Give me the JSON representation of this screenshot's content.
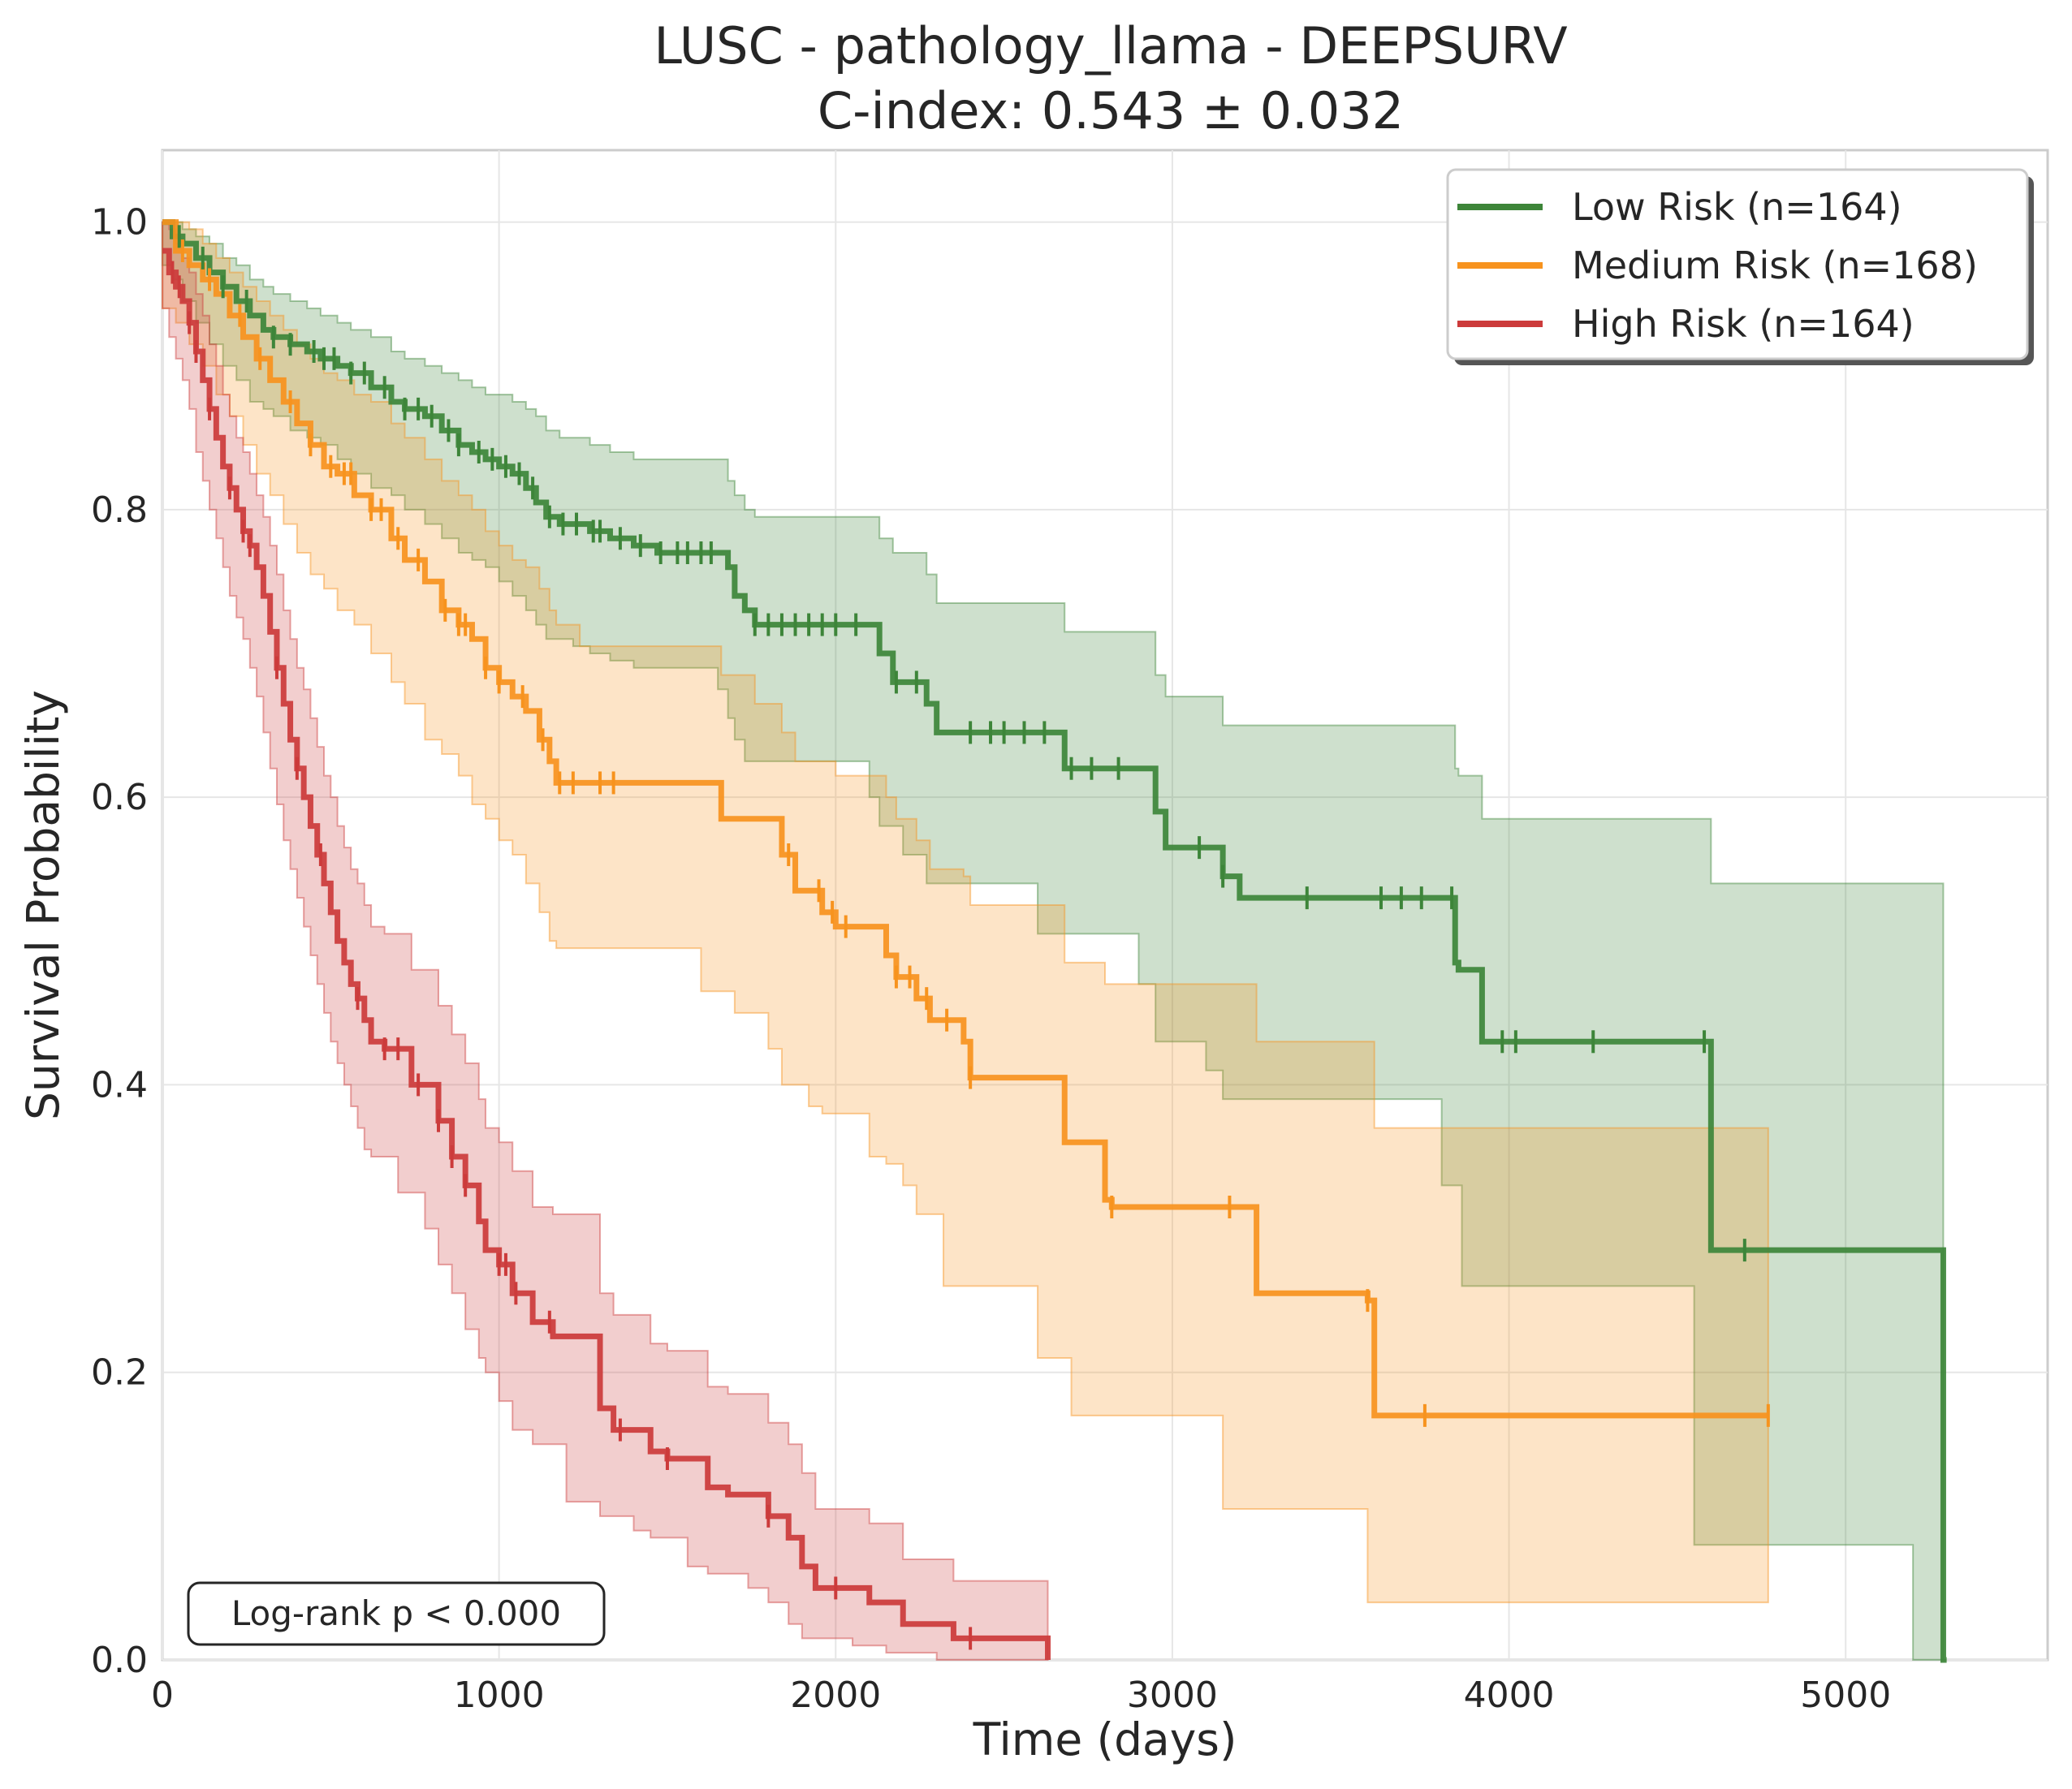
{
  "chart_data": {
    "type": "line",
    "subtype": "kaplan-meier",
    "title": "LUSC - pathology_llama - DEEPSURV",
    "subtitle": "C-index: 0.543 ± 0.032",
    "xlabel": "Time (days)",
    "ylabel": "Survival Probability",
    "xlim": [
      0,
      5600
    ],
    "ylim": [
      0,
      1.05
    ],
    "xticks": [
      0,
      1000,
      2000,
      3000,
      4000,
      5000
    ],
    "xtick_labels": [
      "0",
      "1000",
      "2000",
      "3000",
      "4000",
      "5000"
    ],
    "yticks": [
      0.0,
      0.2,
      0.4,
      0.6,
      0.8,
      1.0
    ],
    "ytick_labels": [
      "0.0",
      "0.2",
      "0.4",
      "0.6",
      "0.8",
      "1.0"
    ],
    "grid": true,
    "legend_position": "top-right",
    "annotation": "Log-rank p < 0.000",
    "series": [
      {
        "name": "Low Risk (n=164)",
        "color": "#3d8539",
        "x": [
          0,
          30,
          60,
          100,
          140,
          180,
          220,
          260,
          300,
          330,
          380,
          430,
          470,
          520,
          560,
          620,
          680,
          720,
          780,
          830,
          880,
          920,
          960,
          1000,
          1040,
          1080,
          1110,
          1140,
          1180,
          1220,
          1270,
          1330,
          1400,
          1470,
          1550,
          1650,
          1680,
          1700,
          1730,
          1760,
          1800,
          1850,
          1900,
          1950,
          2000,
          2050,
          2100,
          2130,
          2170,
          2200,
          2270,
          2300,
          2350,
          2400,
          2500,
          2600,
          2680,
          2800,
          2900,
          2950,
          2980,
          3000,
          3050,
          3100,
          3150,
          3200,
          3350,
          3500,
          3600,
          3700,
          3800,
          3840,
          3850,
          3860,
          3920,
          3950,
          4000,
          4250,
          4550,
          4600,
          4650,
          4700,
          4900,
          5000,
          5100,
          5200,
          5290,
          5300
        ],
        "y": [
          1.0,
          0.99,
          0.985,
          0.975,
          0.965,
          0.955,
          0.945,
          0.935,
          0.925,
          0.92,
          0.915,
          0.91,
          0.905,
          0.9,
          0.895,
          0.885,
          0.875,
          0.87,
          0.865,
          0.855,
          0.845,
          0.84,
          0.835,
          0.83,
          0.825,
          0.815,
          0.805,
          0.795,
          0.79,
          0.79,
          0.785,
          0.78,
          0.775,
          0.77,
          0.77,
          0.77,
          0.76,
          0.74,
          0.73,
          0.72,
          0.72,
          0.72,
          0.72,
          0.72,
          0.72,
          0.72,
          0.72,
          0.7,
          0.68,
          0.68,
          0.665,
          0.645,
          0.645,
          0.645,
          0.645,
          0.645,
          0.62,
          0.62,
          0.62,
          0.59,
          0.565,
          0.565,
          0.565,
          0.565,
          0.545,
          0.53,
          0.53,
          0.53,
          0.53,
          0.53,
          0.53,
          0.485,
          0.48,
          0.48,
          0.43,
          0.43,
          0.43,
          0.43,
          0.43,
          0.285,
          0.285,
          0.285,
          0.285,
          0.285,
          0.285,
          0.285,
          0.0,
          0.0
        ],
        "ci_upper": [
          1.0,
          1.0,
          0.995,
          0.99,
          0.985,
          0.975,
          0.97,
          0.96,
          0.955,
          0.95,
          0.945,
          0.94,
          0.935,
          0.93,
          0.925,
          0.92,
          0.91,
          0.905,
          0.9,
          0.895,
          0.89,
          0.885,
          0.88,
          0.88,
          0.875,
          0.87,
          0.865,
          0.855,
          0.85,
          0.85,
          0.845,
          0.84,
          0.835,
          0.835,
          0.835,
          0.835,
          0.82,
          0.81,
          0.8,
          0.795,
          0.795,
          0.795,
          0.795,
          0.795,
          0.795,
          0.795,
          0.795,
          0.78,
          0.77,
          0.77,
          0.755,
          0.735,
          0.735,
          0.735,
          0.735,
          0.735,
          0.715,
          0.715,
          0.715,
          0.685,
          0.67,
          0.67,
          0.67,
          0.67,
          0.65,
          0.65,
          0.65,
          0.65,
          0.65,
          0.65,
          0.65,
          0.62,
          0.615,
          0.615,
          0.585,
          0.585,
          0.585,
          0.585,
          0.585,
          0.54,
          0.54,
          0.54,
          0.54,
          0.54,
          0.54,
          0.54,
          0.0,
          0.0
        ],
        "ci_lower": [
          0.98,
          0.97,
          0.96,
          0.945,
          0.93,
          0.915,
          0.9,
          0.89,
          0.875,
          0.87,
          0.865,
          0.855,
          0.85,
          0.845,
          0.835,
          0.825,
          0.815,
          0.81,
          0.8,
          0.79,
          0.78,
          0.77,
          0.765,
          0.76,
          0.75,
          0.74,
          0.73,
          0.72,
          0.71,
          0.71,
          0.705,
          0.7,
          0.695,
          0.69,
          0.69,
          0.69,
          0.675,
          0.655,
          0.64,
          0.625,
          0.625,
          0.625,
          0.625,
          0.625,
          0.625,
          0.625,
          0.625,
          0.6,
          0.58,
          0.58,
          0.56,
          0.54,
          0.54,
          0.54,
          0.54,
          0.54,
          0.505,
          0.505,
          0.505,
          0.47,
          0.43,
          0.43,
          0.43,
          0.43,
          0.41,
          0.39,
          0.39,
          0.39,
          0.39,
          0.39,
          0.39,
          0.33,
          0.33,
          0.33,
          0.26,
          0.26,
          0.26,
          0.26,
          0.26,
          0.08,
          0.08,
          0.08,
          0.08,
          0.08,
          0.08,
          0.08,
          0.0,
          0.0
        ]
      },
      {
        "name": "Medium Risk (n=168)",
        "color": "#f7931e",
        "x": [
          0,
          40,
          80,
          120,
          160,
          200,
          240,
          280,
          320,
          360,
          400,
          440,
          480,
          520,
          570,
          620,
          680,
          720,
          780,
          830,
          880,
          920,
          960,
          1000,
          1040,
          1080,
          1120,
          1150,
          1170,
          1200,
          1240,
          1300,
          1400,
          1500,
          1600,
          1660,
          1700,
          1760,
          1800,
          1840,
          1880,
          1920,
          1960,
          2000,
          2050,
          2100,
          2150,
          2180,
          2200,
          2240,
          2280,
          2320,
          2380,
          2400,
          2500,
          2600,
          2680,
          2700,
          2800,
          2820,
          2900,
          3000,
          3100,
          3150,
          3250,
          3300,
          3400,
          3500,
          3580,
          3600,
          3700,
          3800,
          4000,
          4200,
          4400,
          4600,
          4770
        ],
        "y": [
          1.0,
          0.98,
          0.97,
          0.96,
          0.95,
          0.935,
          0.92,
          0.905,
          0.89,
          0.875,
          0.86,
          0.845,
          0.83,
          0.825,
          0.81,
          0.8,
          0.78,
          0.765,
          0.75,
          0.73,
          0.72,
          0.71,
          0.69,
          0.68,
          0.67,
          0.66,
          0.64,
          0.625,
          0.61,
          0.61,
          0.61,
          0.61,
          0.61,
          0.61,
          0.61,
          0.585,
          0.585,
          0.585,
          0.585,
          0.56,
          0.535,
          0.535,
          0.52,
          0.51,
          0.51,
          0.51,
          0.49,
          0.475,
          0.475,
          0.46,
          0.445,
          0.445,
          0.43,
          0.405,
          0.405,
          0.405,
          0.36,
          0.36,
          0.32,
          0.315,
          0.315,
          0.315,
          0.315,
          0.315,
          0.255,
          0.255,
          0.255,
          0.255,
          0.25,
          0.17,
          0.17,
          0.17,
          0.17,
          0.17,
          0.17,
          0.17,
          0.17
        ],
        "ci_upper": [
          1.0,
          1.0,
          0.995,
          0.985,
          0.975,
          0.965,
          0.955,
          0.945,
          0.935,
          0.925,
          0.915,
          0.905,
          0.895,
          0.89,
          0.88,
          0.875,
          0.86,
          0.85,
          0.835,
          0.82,
          0.81,
          0.8,
          0.785,
          0.775,
          0.765,
          0.76,
          0.745,
          0.73,
          0.72,
          0.72,
          0.705,
          0.705,
          0.705,
          0.705,
          0.705,
          0.685,
          0.685,
          0.665,
          0.665,
          0.645,
          0.625,
          0.625,
          0.625,
          0.615,
          0.615,
          0.615,
          0.6,
          0.585,
          0.585,
          0.57,
          0.55,
          0.55,
          0.545,
          0.525,
          0.525,
          0.525,
          0.485,
          0.485,
          0.47,
          0.47,
          0.47,
          0.47,
          0.47,
          0.47,
          0.43,
          0.43,
          0.43,
          0.43,
          0.43,
          0.37,
          0.37,
          0.37,
          0.37,
          0.37,
          0.37,
          0.37,
          0.37
        ],
        "ci_lower": [
          0.96,
          0.94,
          0.93,
          0.915,
          0.9,
          0.88,
          0.865,
          0.845,
          0.825,
          0.81,
          0.79,
          0.77,
          0.755,
          0.745,
          0.73,
          0.72,
          0.7,
          0.68,
          0.665,
          0.64,
          0.63,
          0.615,
          0.595,
          0.585,
          0.57,
          0.56,
          0.54,
          0.52,
          0.5,
          0.495,
          0.495,
          0.495,
          0.495,
          0.495,
          0.495,
          0.465,
          0.465,
          0.45,
          0.45,
          0.425,
          0.4,
          0.4,
          0.385,
          0.38,
          0.38,
          0.38,
          0.35,
          0.345,
          0.345,
          0.33,
          0.31,
          0.31,
          0.26,
          0.26,
          0.26,
          0.26,
          0.21,
          0.21,
          0.17,
          0.17,
          0.17,
          0.17,
          0.17,
          0.17,
          0.105,
          0.105,
          0.105,
          0.105,
          0.105,
          0.04,
          0.04,
          0.04,
          0.04,
          0.04,
          0.04,
          0.04,
          0.04
        ]
      },
      {
        "name": "High Risk (n=164)",
        "color": "#cc3b3b",
        "x": [
          0,
          20,
          40,
          60,
          80,
          100,
          120,
          140,
          160,
          180,
          200,
          220,
          240,
          260,
          280,
          300,
          320,
          340,
          360,
          380,
          400,
          420,
          440,
          460,
          480,
          500,
          520,
          540,
          560,
          580,
          600,
          620,
          660,
          700,
          740,
          780,
          820,
          860,
          900,
          940,
          960,
          1000,
          1040,
          1100,
          1160,
          1200,
          1300,
          1340,
          1400,
          1450,
          1500,
          1560,
          1620,
          1680,
          1740,
          1800,
          1860,
          1900,
          1940,
          1980,
          2000,
          2050,
          2100,
          2150,
          2200,
          2250,
          2300,
          2350,
          2400,
          2450,
          2500,
          2550,
          2600,
          2630
        ],
        "y": [
          0.98,
          0.965,
          0.955,
          0.945,
          0.93,
          0.91,
          0.89,
          0.87,
          0.85,
          0.83,
          0.815,
          0.8,
          0.785,
          0.775,
          0.76,
          0.74,
          0.715,
          0.69,
          0.665,
          0.64,
          0.62,
          0.6,
          0.58,
          0.56,
          0.54,
          0.52,
          0.5,
          0.485,
          0.47,
          0.46,
          0.445,
          0.43,
          0.425,
          0.425,
          0.4,
          0.4,
          0.375,
          0.35,
          0.33,
          0.305,
          0.285,
          0.275,
          0.255,
          0.235,
          0.225,
          0.225,
          0.175,
          0.16,
          0.16,
          0.145,
          0.14,
          0.14,
          0.12,
          0.115,
          0.115,
          0.1,
          0.085,
          0.065,
          0.05,
          0.05,
          0.05,
          0.05,
          0.04,
          0.04,
          0.025,
          0.025,
          0.025,
          0.015,
          0.015,
          0.015,
          0.015,
          0.015,
          0.015,
          0.0
        ],
        "ci_upper": [
          1.0,
          0.995,
          0.985,
          0.975,
          0.965,
          0.95,
          0.935,
          0.915,
          0.9,
          0.88,
          0.865,
          0.85,
          0.84,
          0.825,
          0.81,
          0.795,
          0.775,
          0.755,
          0.73,
          0.71,
          0.69,
          0.675,
          0.655,
          0.635,
          0.615,
          0.6,
          0.58,
          0.565,
          0.55,
          0.54,
          0.525,
          0.51,
          0.505,
          0.505,
          0.48,
          0.48,
          0.455,
          0.435,
          0.415,
          0.39,
          0.37,
          0.36,
          0.34,
          0.315,
          0.31,
          0.31,
          0.255,
          0.24,
          0.24,
          0.22,
          0.215,
          0.215,
          0.19,
          0.185,
          0.185,
          0.165,
          0.15,
          0.13,
          0.105,
          0.105,
          0.105,
          0.105,
          0.095,
          0.095,
          0.07,
          0.07,
          0.07,
          0.055,
          0.055,
          0.055,
          0.055,
          0.055,
          0.055,
          0.055
        ],
        "ci_lower": [
          0.96,
          0.94,
          0.92,
          0.905,
          0.89,
          0.87,
          0.84,
          0.82,
          0.8,
          0.78,
          0.76,
          0.74,
          0.725,
          0.71,
          0.69,
          0.67,
          0.645,
          0.62,
          0.595,
          0.57,
          0.55,
          0.53,
          0.51,
          0.49,
          0.47,
          0.45,
          0.43,
          0.415,
          0.4,
          0.385,
          0.37,
          0.355,
          0.35,
          0.35,
          0.325,
          0.325,
          0.3,
          0.275,
          0.255,
          0.23,
          0.21,
          0.2,
          0.18,
          0.16,
          0.15,
          0.15,
          0.11,
          0.1,
          0.1,
          0.09,
          0.085,
          0.085,
          0.065,
          0.06,
          0.06,
          0.05,
          0.04,
          0.025,
          0.015,
          0.015,
          0.015,
          0.015,
          0.01,
          0.01,
          0.005,
          0.005,
          0.005,
          0.0,
          0.0,
          0.0,
          0.0,
          0.0,
          0.0,
          0.0
        ]
      }
    ],
    "censor_marks": [
      [
        50,
        120,
        180,
        250,
        330,
        380,
        450,
        480,
        510,
        560,
        600,
        660,
        720,
        760,
        800,
        850,
        880,
        940,
        980,
        1020,
        1060,
        1100,
        1150,
        1190,
        1230,
        1280,
        1300,
        1360,
        1420,
        1480,
        1530,
        1560,
        1600,
        1630,
        1760,
        1800,
        1840,
        1880,
        1920,
        1960,
        2000,
        2060,
        2180,
        2240,
        2400,
        2460,
        2500,
        2560,
        2620,
        2700,
        2760,
        2840,
        3080,
        3150,
        3400,
        3620,
        3680,
        3740,
        3830,
        3980,
        4020,
        4250,
        4580,
        4700
      ],
      [
        60,
        140,
        230,
        290,
        380,
        440,
        500,
        540,
        560,
        620,
        650,
        700,
        760,
        840,
        880,
        900,
        960,
        1000,
        1070,
        1130,
        1180,
        1220,
        1300,
        1340,
        1860,
        1950,
        1990,
        2030,
        2180,
        2220,
        2270,
        2330,
        2400,
        2820,
        3170,
        3580,
        3750,
        4770
      ],
      [
        30,
        50,
        80,
        100,
        140,
        200,
        240,
        260,
        340,
        400,
        470,
        580,
        660,
        700,
        760,
        820,
        860,
        900,
        1000,
        1020,
        1050,
        1150,
        1360,
        1500,
        1800,
        2000,
        2400
      ]
    ]
  }
}
